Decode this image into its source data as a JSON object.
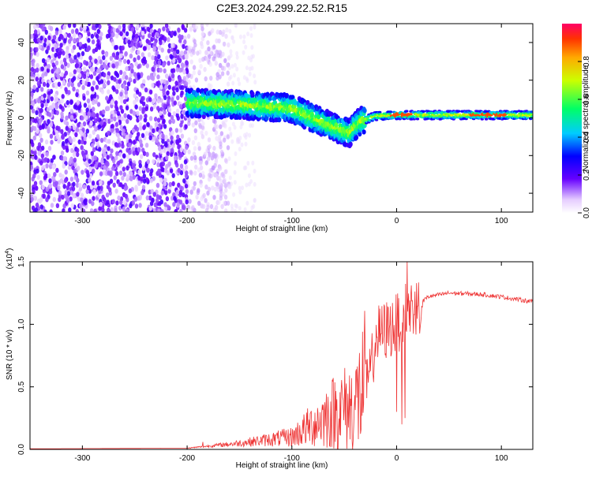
{
  "title": "C2E3.2024.299.22.52.R15",
  "chart_data": [
    {
      "type": "heatmap",
      "xlabel": "Height of straight line (km)",
      "ylabel": "Frequency (Hz)",
      "xlim": [
        -350,
        130
      ],
      "ylim": [
        -50,
        50
      ],
      "xticks": [
        -300,
        -200,
        -100,
        0,
        100
      ],
      "yticks": [
        -40,
        -20,
        0,
        20,
        40
      ],
      "grid": false,
      "colorbar": {
        "label": "Normalized spectral amplitude",
        "range": [
          0,
          1
        ],
        "ticks": [
          "0.0",
          "0.2",
          "0.4",
          "0.6",
          "0.8"
        ]
      },
      "features": {
        "noise_region_x": [
          -350,
          -160
        ],
        "dense_noise_end_x": -200,
        "signal_start_x": -200,
        "signal_trace": [
          {
            "x": -200,
            "f": 8
          },
          {
            "x": -150,
            "f": 7
          },
          {
            "x": -100,
            "f": 5
          },
          {
            "x": -80,
            "f": 0
          },
          {
            "x": -60,
            "f": -5
          },
          {
            "x": -45,
            "f": -8
          },
          {
            "x": -35,
            "f": -2
          },
          {
            "x": -20,
            "f": 1
          },
          {
            "x": 0,
            "f": 1.5
          },
          {
            "x": 50,
            "f": 1.5
          },
          {
            "x": 130,
            "f": 1.5
          }
        ],
        "peak_amplitude": 0.9
      }
    },
    {
      "type": "line",
      "xlabel": "Height of straight line (km)",
      "ylabel": "SNR (10 * v/v)",
      "y_multiplier": "(x10",
      "y_multiplier_exp": "4",
      "y_multiplier_close": ")",
      "xlim": [
        -350,
        130
      ],
      "ylim": [
        0,
        1.5
      ],
      "xticks": [
        -300,
        -200,
        -100,
        0,
        100
      ],
      "yticks": [
        "0.0",
        "0.5",
        "1.0",
        "1.5"
      ],
      "grid": false,
      "series": [
        {
          "color": "#ee3333",
          "envelope": [
            {
              "x": -350,
              "y": 0.005
            },
            {
              "x": -200,
              "y": 0.01
            },
            {
              "x": -150,
              "y": 0.05
            },
            {
              "x": -100,
              "y": 0.1
            },
            {
              "x": -80,
              "y": 0.2
            },
            {
              "x": -60,
              "y": 0.3
            },
            {
              "x": -40,
              "y": 0.35
            },
            {
              "x": -25,
              "y": 0.6
            },
            {
              "x": -20,
              "y": 0.9
            },
            {
              "x": -10,
              "y": 0.95
            },
            {
              "x": 0,
              "y": 1.0
            },
            {
              "x": 8,
              "y": 1.1
            },
            {
              "x": 20,
              "y": 1.15
            },
            {
              "x": 30,
              "y": 1.22
            },
            {
              "x": 50,
              "y": 1.25
            },
            {
              "x": 80,
              "y": 1.24
            },
            {
              "x": 100,
              "y": 1.22
            },
            {
              "x": 130,
              "y": 1.18
            }
          ],
          "spikes": [
            {
              "x": -185,
              "y": 0.06
            },
            {
              "x": 0,
              "y": 0.3
            },
            {
              "x": 5,
              "y": 0.2
            },
            {
              "x": 8,
              "y": 0.25
            },
            {
              "x": 10,
              "y": 1.52
            }
          ]
        }
      ]
    }
  ]
}
